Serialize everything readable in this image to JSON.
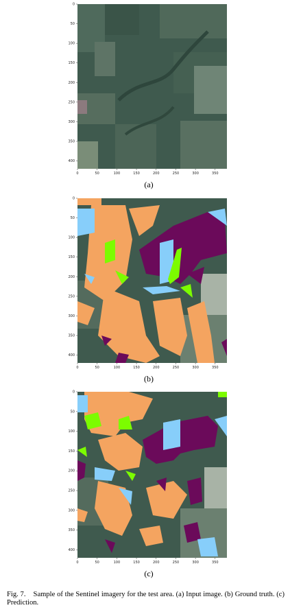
{
  "figure": {
    "label": "Fig. 7.",
    "caption": "Sample of the Sentinel imagery for the test area. (a) Input image. (b) Ground truth. (c) Prediction."
  },
  "panels": [
    {
      "tag": "(a)",
      "kind": "input"
    },
    {
      "tag": "(b)",
      "kind": "ground-truth"
    },
    {
      "tag": "(c)",
      "kind": "prediction"
    }
  ],
  "axes": {
    "x_ticks": [
      "0",
      "50",
      "100",
      "150",
      "200",
      "250",
      "300",
      "350"
    ],
    "y_ticks": [
      "0",
      "50",
      "100",
      "150",
      "200",
      "250",
      "300",
      "350",
      "400"
    ]
  },
  "colors": {
    "class_orange": "#f4a460",
    "class_purple": "#6b0a5a",
    "class_blue": "#87cefa",
    "class_green": "#7cfc00",
    "satellite_base": "#3f5a4e"
  }
}
